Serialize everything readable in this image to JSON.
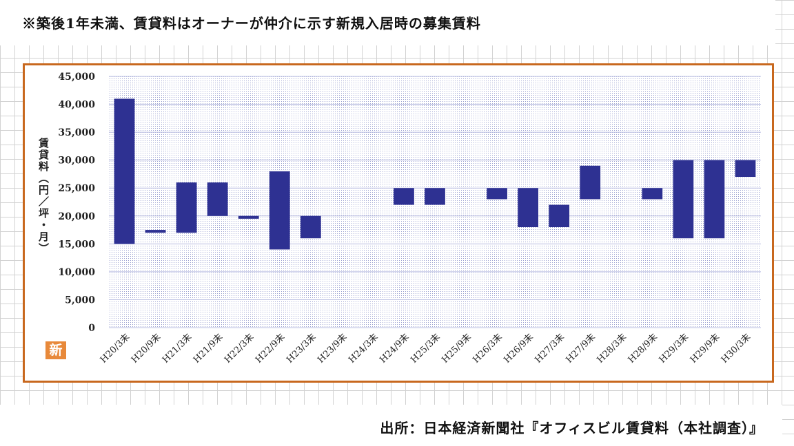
{
  "caption": "※築後1年未満、賃貸料はオーナーが仲介に示す新規入居時の募集賃料",
  "source": "出所：日本経済新聞社『オフィスビル賃貸料（本社調査）』",
  "badge": "新",
  "colors": {
    "bar": "#2e3192",
    "frame": "#c8681e",
    "plot_dots": "#9aa0d0"
  },
  "chart_data": {
    "type": "bar",
    "subtype": "floating-range",
    "title": "",
    "xlabel": "",
    "ylabel": "賃貸料（円／坪・月）",
    "ylim": [
      0,
      45000
    ],
    "yticks": [
      0,
      5000,
      10000,
      15000,
      20000,
      25000,
      30000,
      35000,
      40000,
      45000
    ],
    "ytick_labels": [
      "0",
      "5,000",
      "10,000",
      "15,000",
      "20,000",
      "25,000",
      "30,000",
      "35,000",
      "40,000",
      "45,000"
    ],
    "grid": true,
    "categories": [
      "H20/3末",
      "H20/9末",
      "H21/3末",
      "H21/9末",
      "H22/3末",
      "H22/9末",
      "H23/3末",
      "H23/9末",
      "H24/3末",
      "H24/9末",
      "H25/3末",
      "H25/9末",
      "H26/3末",
      "H26/9末",
      "H27/3末",
      "H27/9末",
      "H28/3末",
      "H28/9末",
      "H29/3末",
      "H29/9末",
      "H30/3末"
    ],
    "low": [
      15000,
      17000,
      17000,
      20000,
      19500,
      14000,
      16000,
      null,
      null,
      22000,
      22000,
      null,
      23000,
      18000,
      18000,
      23000,
      null,
      23000,
      16000,
      16000,
      27000
    ],
    "high": [
      41000,
      17500,
      26000,
      26000,
      20000,
      28000,
      20000,
      null,
      null,
      25000,
      25000,
      null,
      25000,
      25000,
      22000,
      29000,
      null,
      25000,
      30000,
      30000,
      30000
    ]
  }
}
